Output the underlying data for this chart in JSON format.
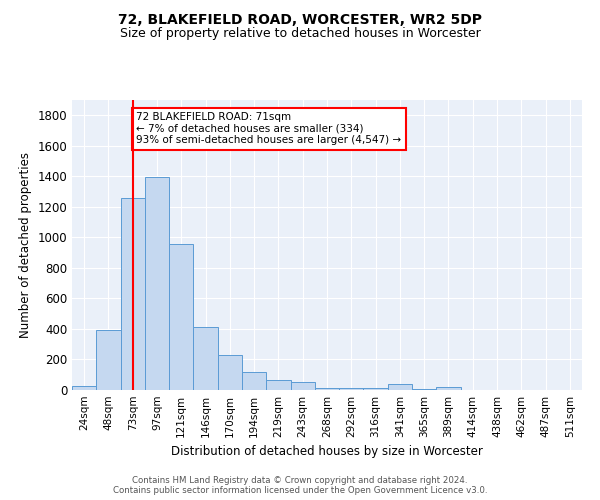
{
  "title1": "72, BLAKEFIELD ROAD, WORCESTER, WR2 5DP",
  "title2": "Size of property relative to detached houses in Worcester",
  "xlabel": "Distribution of detached houses by size in Worcester",
  "ylabel": "Number of detached properties",
  "categories": [
    "24sqm",
    "48sqm",
    "73sqm",
    "97sqm",
    "121sqm",
    "146sqm",
    "170sqm",
    "194sqm",
    "219sqm",
    "243sqm",
    "268sqm",
    "292sqm",
    "316sqm",
    "341sqm",
    "365sqm",
    "389sqm",
    "414sqm",
    "438sqm",
    "462sqm",
    "487sqm",
    "511sqm"
  ],
  "values": [
    25,
    390,
    1260,
    1395,
    955,
    410,
    230,
    120,
    65,
    50,
    15,
    10,
    10,
    40,
    5,
    20,
    0,
    0,
    0,
    0,
    0
  ],
  "bar_color": "#c5d8f0",
  "bar_edge_color": "#5b9bd5",
  "vline_x_idx": 2,
  "vline_color": "red",
  "annotation_text": "72 BLAKEFIELD ROAD: 71sqm\n← 7% of detached houses are smaller (334)\n93% of semi-detached houses are larger (4,547) →",
  "annotation_box_color": "white",
  "annotation_box_edge": "red",
  "ylim": [
    0,
    1900
  ],
  "yticks": [
    0,
    200,
    400,
    600,
    800,
    1000,
    1200,
    1400,
    1600,
    1800
  ],
  "bg_color": "#eaf0f9",
  "grid_color": "white",
  "footer": "Contains HM Land Registry data © Crown copyright and database right 2024.\nContains public sector information licensed under the Open Government Licence v3.0."
}
